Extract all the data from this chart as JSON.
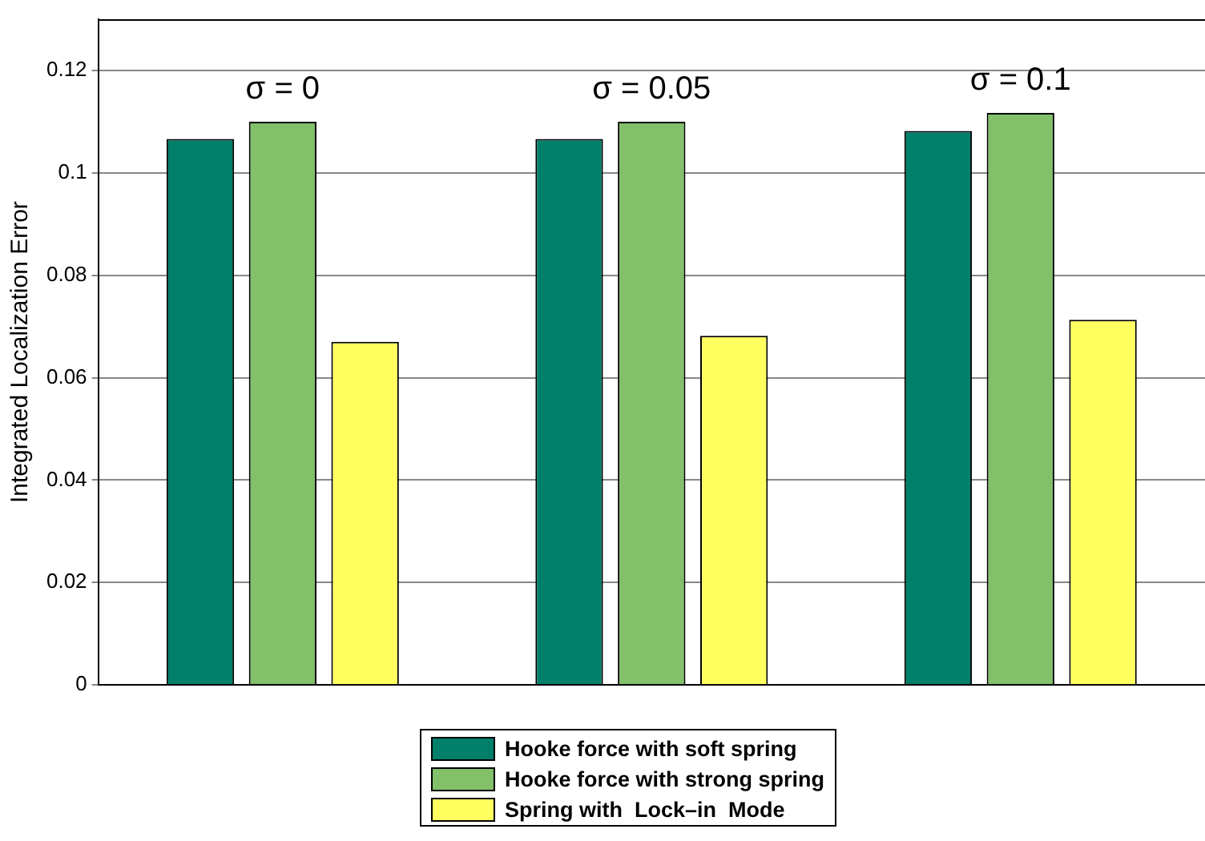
{
  "chart_data": {
    "type": "bar",
    "ylabel": "Integrated Localization Error",
    "categories": [
      null,
      null,
      null
    ],
    "series": [
      {
        "name": "Hooke force with soft spring",
        "color": "#00806a",
        "values": [
          0.1066,
          0.1066,
          0.1082
        ]
      },
      {
        "name": "Hooke force with strong spring",
        "color": "#82c06a",
        "values": [
          0.11,
          0.11,
          0.1117
        ]
      },
      {
        "name": "Spring with  Lock–in  Mode",
        "color": "#ffff60",
        "values": [
          0.067,
          0.0682,
          0.0713
        ]
      }
    ],
    "annotations": [
      "σ = 0",
      "σ = 0.05",
      "σ = 0.1"
    ],
    "ylim": [
      0,
      0.13
    ],
    "yticks": [
      0,
      0.02,
      0.04,
      0.06,
      0.08,
      0.1,
      0.12
    ],
    "grid": "y",
    "legend": "bottom"
  }
}
